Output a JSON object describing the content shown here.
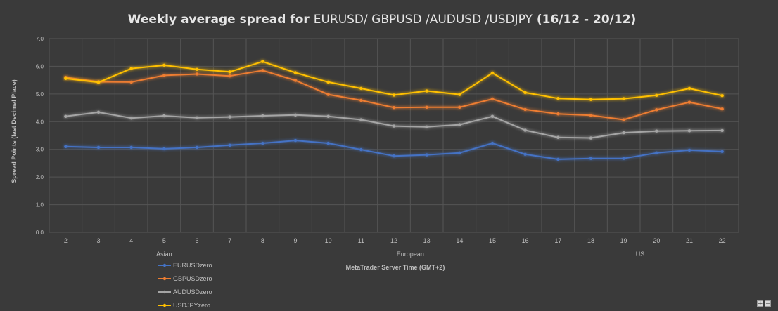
{
  "title": {
    "part1": "Weekly average spread for ",
    "part2": "EURUSD/ GBPUSD /AUDUSD /USDJPY",
    "part3": " (16/12 - 20/12)"
  },
  "colors": {
    "background": "#3a3a3a",
    "grid": "#555555",
    "EURUSDzero": "#4472c4",
    "GBPUSDzero": "#ed7d31",
    "AUDUSDzero": "#a5a5a5",
    "USDJPYzero": "#ffc000"
  },
  "zoom": {
    "in_label": "+",
    "out_label": "−"
  },
  "chart_data": {
    "type": "line",
    "title": "Weekly average spread for EURUSD/ GBPUSD /AUDUSD /USDJPY (16/12 - 20/12)",
    "xlabel": "MetaTrader Server Time (GMT+2)",
    "ylabel": "Spread Points  (last Decimal Place)",
    "ylim": [
      0,
      7
    ],
    "y_ticks": [
      "0.0",
      "1.0",
      "2.0",
      "3.0",
      "4.0",
      "5.0",
      "6.0",
      "7.0"
    ],
    "grid": true,
    "legend_position": "bottom-left",
    "categories": [
      "2",
      "3",
      "4",
      "5",
      "6",
      "7",
      "8",
      "9",
      "10",
      "11",
      "12",
      "13",
      "14",
      "15",
      "16",
      "17",
      "18",
      "19",
      "20",
      "21",
      "22"
    ],
    "sessions": [
      {
        "label": "Asian",
        "at": "5"
      },
      {
        "label": "European",
        "at": "12.5"
      },
      {
        "label": "US",
        "at": "19.5"
      }
    ],
    "series": [
      {
        "name": "EURUSDzero",
        "values": [
          3.1,
          3.07,
          3.07,
          3.02,
          3.07,
          3.15,
          3.22,
          3.32,
          3.22,
          2.99,
          2.76,
          2.8,
          2.87,
          3.22,
          2.82,
          2.64,
          2.67,
          2.67,
          2.87,
          2.97,
          2.92
        ]
      },
      {
        "name": "GBPUSDzero",
        "values": [
          5.6,
          5.44,
          5.43,
          5.67,
          5.72,
          5.65,
          5.85,
          5.49,
          4.98,
          4.77,
          4.51,
          4.52,
          4.52,
          4.82,
          4.44,
          4.28,
          4.23,
          4.07,
          4.43,
          4.7,
          4.46
        ]
      },
      {
        "name": "AUDUSDzero",
        "values": [
          4.19,
          4.34,
          4.13,
          4.21,
          4.14,
          4.17,
          4.21,
          4.24,
          4.19,
          4.07,
          3.84,
          3.81,
          3.89,
          4.19,
          3.69,
          3.43,
          3.41,
          3.6,
          3.66,
          3.67,
          3.68
        ]
      },
      {
        "name": "USDJPYzero",
        "values": [
          5.56,
          5.42,
          5.92,
          6.04,
          5.89,
          5.8,
          6.17,
          5.77,
          5.43,
          5.2,
          4.96,
          5.11,
          4.98,
          5.76,
          5.05,
          4.84,
          4.8,
          4.83,
          4.95,
          5.2,
          4.94
        ]
      }
    ]
  }
}
